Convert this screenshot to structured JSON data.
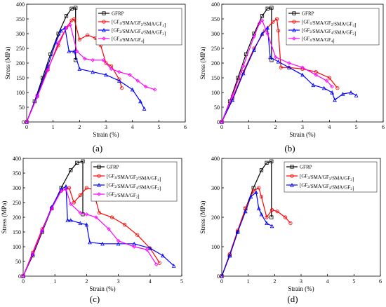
{
  "figure": {
    "panel_labels": [
      "(a)",
      "(b)",
      "(c)",
      "(d)"
    ]
  },
  "chart_data": [
    {
      "type": "line",
      "panel": "(a)",
      "xlabel": "Strain (%)",
      "ylabel": "Stress (MPa)",
      "xlim": [
        0,
        6
      ],
      "ylim": [
        0,
        400
      ],
      "xticks": [
        0,
        1,
        2,
        3,
        4,
        5,
        6
      ],
      "yticks": [
        0,
        50,
        100,
        150,
        200,
        250,
        300,
        350,
        400
      ],
      "legend_position": "top-right",
      "series": [
        {
          "name": "GFRP",
          "color": "#000000",
          "marker": "square",
          "x": [
            0,
            0.3,
            0.6,
            0.9,
            1.2,
            1.5,
            1.7,
            1.85,
            1.85
          ],
          "y": [
            0,
            70,
            150,
            230,
            300,
            360,
            385,
            388,
            210
          ]
        },
        {
          "name": "[GF₄/SMA/GF₂/SMA/GF₄]",
          "color": "#ff0000",
          "marker": "circle",
          "x": [
            0,
            0.4,
            0.8,
            1.2,
            1.5,
            1.7,
            1.8,
            2.0,
            2.3,
            2.6,
            2.8,
            3.0,
            3.2,
            3.5,
            3.6
          ],
          "y": [
            0,
            90,
            180,
            260,
            320,
            345,
            350,
            280,
            295,
            285,
            260,
            200,
            190,
            145,
            115
          ]
        },
        {
          "name": "[GF₂/SMA/GF₄/SMA/GF₂]",
          "color": "#0000ff",
          "marker": "triangle",
          "x": [
            0,
            0.4,
            0.8,
            1.1,
            1.3,
            1.45,
            1.6,
            1.8,
            2.0,
            2.5,
            3.0,
            3.5,
            4.0,
            4.3,
            4.45
          ],
          "y": [
            0,
            90,
            190,
            270,
            310,
            320,
            240,
            240,
            180,
            170,
            160,
            140,
            110,
            70,
            45
          ]
        },
        {
          "name": "[GF₄/SMA/GF₄]",
          "color": "#ff00ff",
          "marker": "diamond",
          "x": [
            0,
            0.4,
            0.8,
            1.2,
            1.5,
            1.65,
            1.9,
            2.2,
            2.5,
            2.9,
            3.2,
            3.5,
            3.9,
            4.2,
            4.5,
            4.85
          ],
          "y": [
            0,
            85,
            175,
            270,
            320,
            330,
            240,
            215,
            210,
            210,
            180,
            170,
            160,
            140,
            120,
            110
          ]
        }
      ]
    },
    {
      "type": "line",
      "panel": "(b)",
      "xlabel": "Strain (%)",
      "ylabel": "Stress (MPa)",
      "xlim": [
        0,
        6
      ],
      "ylim": [
        0,
        400
      ],
      "xticks": [
        0,
        1,
        2,
        3,
        4,
        5,
        6
      ],
      "yticks": [
        0,
        50,
        100,
        150,
        200,
        250,
        300,
        350,
        400
      ],
      "legend_position": "top-right",
      "series": [
        {
          "name": "GFRP",
          "color": "#000000",
          "marker": "square",
          "x": [
            0,
            0.3,
            0.6,
            0.9,
            1.2,
            1.5,
            1.7,
            1.85,
            1.85
          ],
          "y": [
            0,
            70,
            150,
            230,
            300,
            360,
            385,
            388,
            210
          ]
        },
        {
          "name": "[GF₄/SMA/GF₂/SMA/GF₄]",
          "color": "#ff0000",
          "marker": "circle",
          "x": [
            0,
            0.4,
            0.8,
            1.2,
            1.6,
            1.9,
            2.05,
            2.1,
            2.2,
            2.5,
            3.0,
            3.5,
            4.0,
            4.3
          ],
          "y": [
            0,
            80,
            170,
            250,
            310,
            340,
            350,
            310,
            185,
            185,
            180,
            170,
            150,
            115
          ]
        },
        {
          "name": "[GF₂/SMA/GF₄/SMA/GF₂]",
          "color": "#0000ff",
          "marker": "triangle",
          "x": [
            0,
            0.4,
            0.8,
            1.2,
            1.5,
            1.7,
            1.8,
            2.1,
            2.5,
            3.0,
            3.4,
            3.8,
            4.1,
            4.2,
            4.5,
            4.8,
            5.0
          ],
          "y": [
            0,
            75,
            165,
            245,
            300,
            320,
            220,
            205,
            185,
            160,
            125,
            115,
            100,
            75,
            95,
            100,
            90
          ]
        },
        {
          "name": "[GF₄/SMA/GF₄]",
          "color": "#ff00ff",
          "marker": "diamond",
          "x": [
            0,
            0.4,
            0.8,
            1.2,
            1.4,
            1.5,
            1.7,
            2.0,
            2.5,
            3.0,
            3.5,
            3.9,
            4.1
          ],
          "y": [
            0,
            90,
            190,
            290,
            335,
            345,
            300,
            220,
            200,
            185,
            160,
            140,
            120
          ]
        }
      ]
    },
    {
      "type": "line",
      "panel": "(c)",
      "xlabel": "Strain (%)",
      "ylabel": "Stress (MPa)",
      "xlim": [
        0,
        5
      ],
      "ylim": [
        0,
        400
      ],
      "xticks": [
        0,
        1,
        2,
        3,
        4,
        5
      ],
      "yticks": [
        0,
        50,
        100,
        150,
        200,
        250,
        300,
        350,
        400
      ],
      "legend_position": "top-right",
      "series": [
        {
          "name": "GFRP",
          "color": "#000000",
          "marker": "square",
          "x": [
            0,
            0.3,
            0.6,
            0.9,
            1.2,
            1.5,
            1.7,
            1.88,
            1.88
          ],
          "y": [
            0,
            70,
            150,
            230,
            300,
            360,
            385,
            390,
            210
          ]
        },
        {
          "name": "[GF₄/SMA/GF₂/SMA/GF₄]",
          "color": "#ff0000",
          "marker": "circle",
          "x": [
            0,
            0.3,
            0.6,
            0.9,
            1.2,
            1.45,
            1.6,
            1.8,
            2.0,
            2.2,
            2.4,
            2.8,
            3.2,
            3.6,
            4.0,
            4.3
          ],
          "y": [
            0,
            80,
            160,
            230,
            290,
            300,
            250,
            275,
            300,
            295,
            215,
            200,
            175,
            140,
            95,
            45
          ]
        },
        {
          "name": "[GF₂/SMA/GF₄/SMA/GF₂]",
          "color": "#0000ff",
          "marker": "triangle",
          "x": [
            0,
            0.3,
            0.6,
            0.9,
            1.2,
            1.35,
            1.4,
            1.5,
            1.8,
            2.0,
            2.1,
            2.5,
            3.0,
            3.5,
            4.0,
            4.4,
            4.75
          ],
          "y": [
            0,
            75,
            155,
            235,
            295,
            305,
            190,
            190,
            180,
            175,
            115,
            110,
            110,
            110,
            95,
            70,
            35
          ]
        },
        {
          "name": "[GF₂/SMA/GF₂]",
          "color": "#ff00ff",
          "marker": "diamond",
          "x": [
            0,
            0.3,
            0.6,
            0.9,
            1.2,
            1.35,
            1.5,
            1.8,
            2.0,
            2.3,
            2.7,
            3.0,
            3.5,
            3.9,
            4.2
          ],
          "y": [
            0,
            75,
            155,
            230,
            290,
            295,
            245,
            215,
            210,
            200,
            160,
            120,
            100,
            90,
            40
          ]
        }
      ]
    },
    {
      "type": "line",
      "panel": "(d)",
      "xlabel": "Strain (%)",
      "ylabel": "Stress (MPa)",
      "xlim": [
        0,
        6
      ],
      "ylim": [
        0,
        400
      ],
      "xticks": [
        0,
        1,
        2,
        3,
        4,
        5,
        6
      ],
      "yticks": [
        0,
        100,
        200,
        300,
        400
      ],
      "legend_position": "top-right",
      "series": [
        {
          "name": "GFRP",
          "color": "#000000",
          "marker": "square",
          "x": [
            0,
            0.3,
            0.6,
            0.9,
            1.2,
            1.5,
            1.7,
            1.88,
            1.88
          ],
          "y": [
            0,
            70,
            150,
            230,
            300,
            360,
            385,
            390,
            200
          ]
        },
        {
          "name": "[GF₃/SMA/GF₃/SMA/GF₃]",
          "color": "#ff0000",
          "marker": "circle",
          "x": [
            0,
            0.3,
            0.6,
            0.9,
            1.2,
            1.4,
            1.5,
            1.7,
            1.9,
            2.1,
            2.4,
            2.6
          ],
          "y": [
            0,
            75,
            155,
            230,
            290,
            300,
            270,
            200,
            225,
            220,
            200,
            180
          ]
        },
        {
          "name": "[GF₂/SMA/GF₄/SMA/GF₂]",
          "color": "#0000ff",
          "marker": "triangle",
          "x": [
            0,
            0.3,
            0.6,
            0.9,
            1.1,
            1.3,
            1.4,
            1.5,
            1.7,
            1.9
          ],
          "y": [
            0,
            70,
            150,
            220,
            270,
            285,
            230,
            210,
            180,
            170
          ]
        }
      ]
    }
  ]
}
